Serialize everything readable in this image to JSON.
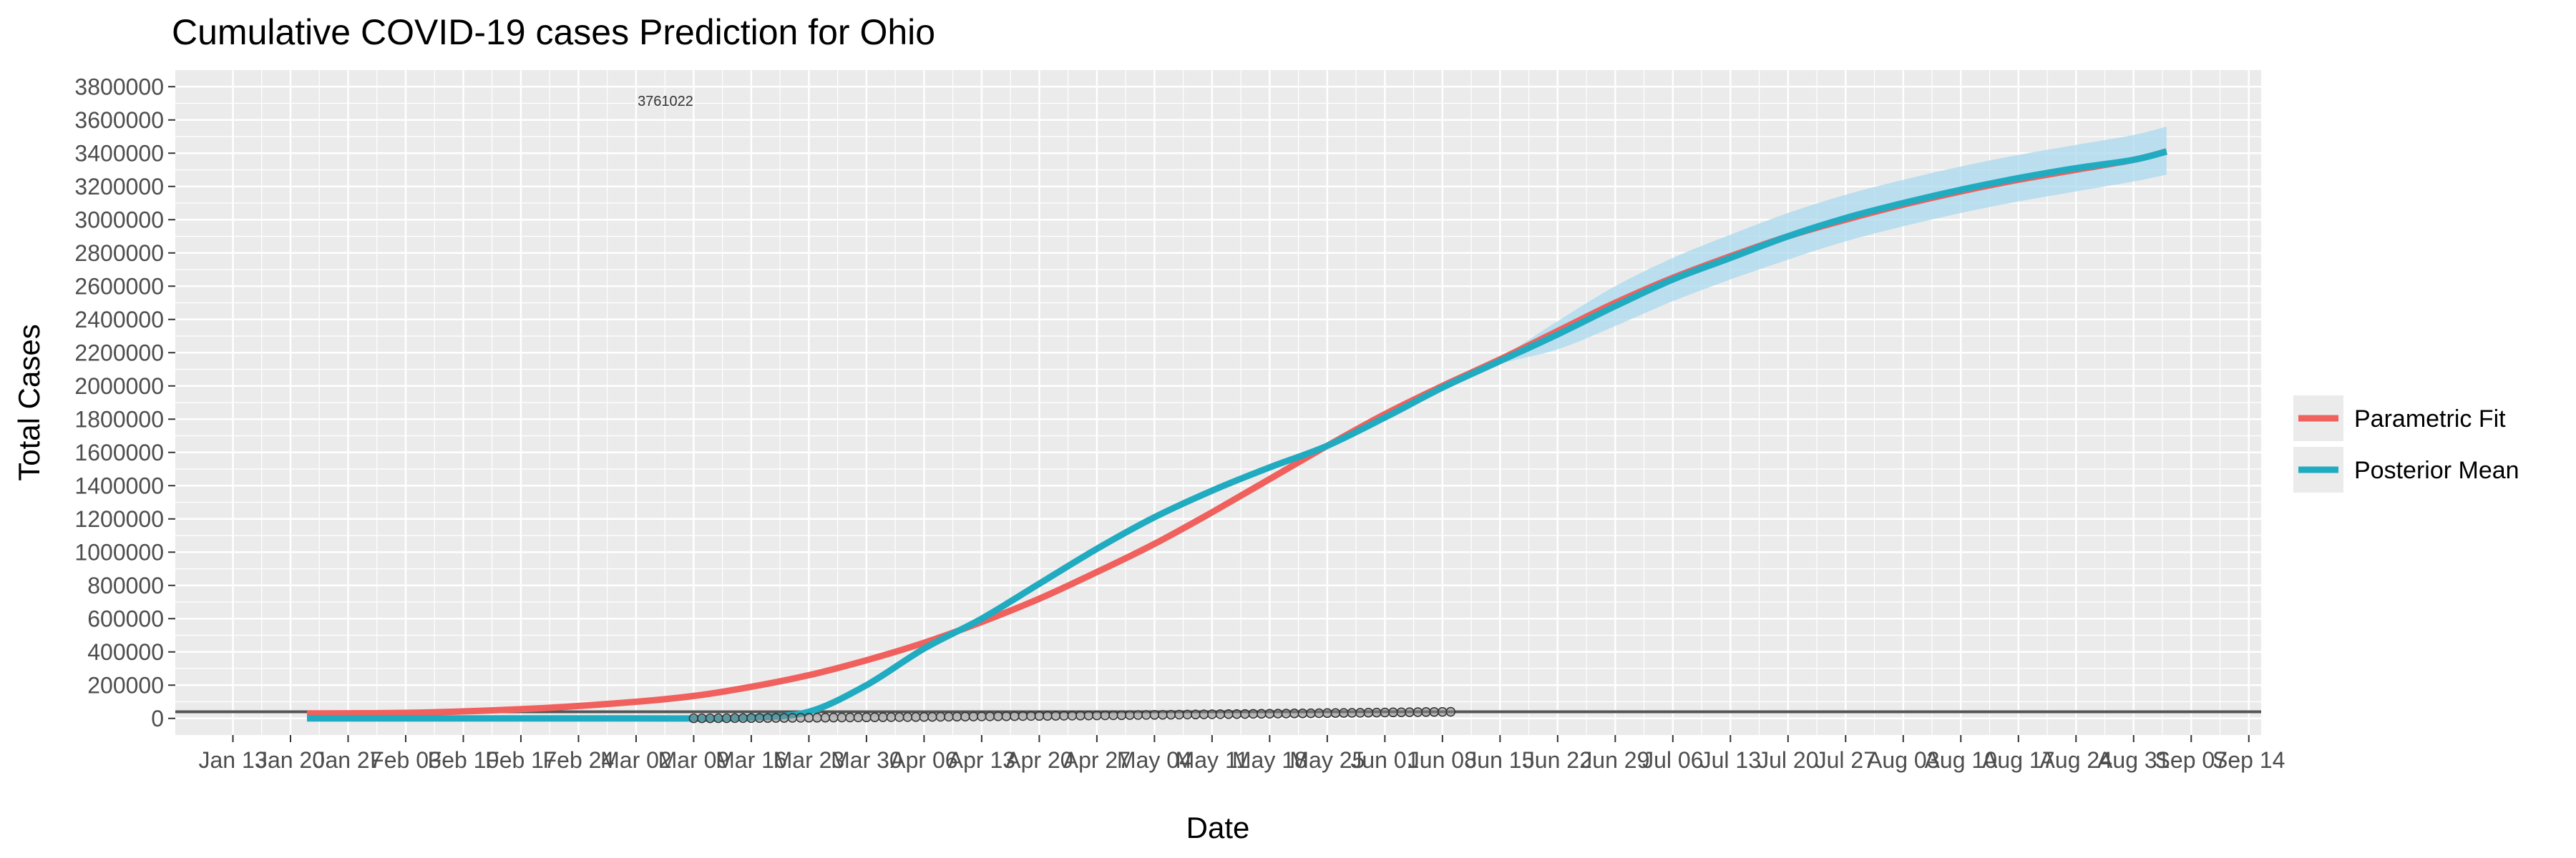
{
  "chart_data": {
    "type": "line",
    "title": "Cumulative COVID-19 cases Prediction for Ohio",
    "xlabel": "Date",
    "ylabel": "Total Cases",
    "ylim": [
      -100000,
      3900000
    ],
    "yticks": [
      0,
      200000,
      400000,
      600000,
      800000,
      1000000,
      1200000,
      1400000,
      1600000,
      1800000,
      2000000,
      2200000,
      2400000,
      2600000,
      2800000,
      3000000,
      3200000,
      3400000,
      3600000,
      3800000
    ],
    "xticks": [
      "Jan 13",
      "Jan 20",
      "Jan 27",
      "Feb 03",
      "Feb 10",
      "Feb 17",
      "Feb 24",
      "Mar 02",
      "Mar 09",
      "Mar 16",
      "Mar 23",
      "Mar 30",
      "Apr 06",
      "Apr 13",
      "Apr 20",
      "Apr 27",
      "May 04",
      "May 11",
      "May 18",
      "May 25",
      "Jun 01",
      "Jun 08",
      "Jun 15",
      "Jun 22",
      "Jun 29",
      "Jul 06",
      "Jul 13",
      "Jul 20",
      "Jul 27",
      "Aug 03",
      "Aug 10",
      "Aug 17",
      "Aug 24",
      "Aug 31",
      "Sep 07",
      "Sep 14"
    ],
    "annotation": "3761022",
    "hline": 40000,
    "legend": {
      "placement": "right",
      "entries": [
        "Parametric Fit",
        "Posterior Mean"
      ]
    },
    "colors": {
      "parametric": "#F0605D",
      "posterior": "#21ABC0",
      "band": "#A9D9EF",
      "observed": "#555555",
      "hline": "#555555",
      "panel": "#EBEBEB",
      "grid": "#FFFFFF"
    },
    "series": [
      {
        "name": "Parametric Fit",
        "x": [
          "Jan 22",
          "Feb 05",
          "Feb 19",
          "Mar 02",
          "Mar 09",
          "Mar 16",
          "Mar 23",
          "Mar 30",
          "Apr 06",
          "Apr 13",
          "Apr 20",
          "Apr 27",
          "May 04",
          "May 11",
          "May 18",
          "May 25",
          "Jun 01",
          "Jun 08",
          "Jun 15",
          "Jun 22",
          "Jun 29",
          "Jul 06",
          "Jul 13",
          "Jul 20",
          "Jul 27",
          "Aug 03",
          "Aug 10",
          "Aug 17",
          "Aug 24",
          "Aug 31",
          "Sep 04"
        ],
        "values": [
          30000,
          35000,
          60000,
          100000,
          135000,
          190000,
          260000,
          350000,
          455000,
          580000,
          720000,
          880000,
          1050000,
          1240000,
          1440000,
          1640000,
          1830000,
          2000000,
          2160000,
          2330000,
          2500000,
          2650000,
          2780000,
          2900000,
          3000000,
          3090000,
          3170000,
          3240000,
          3300000,
          3360000,
          3410000
        ]
      },
      {
        "name": "Posterior Mean",
        "x": [
          "Jan 22",
          "Feb 05",
          "Feb 19",
          "Mar 02",
          "Mar 09",
          "Mar 16",
          "Mar 23",
          "Mar 30",
          "Apr 06",
          "Apr 13",
          "Apr 20",
          "Apr 27",
          "May 04",
          "May 11",
          "May 18",
          "May 25",
          "Jun 01",
          "Jun 08",
          "Jun 15",
          "Jun 22",
          "Jun 29",
          "Jul 06",
          "Jul 13",
          "Jul 20",
          "Jul 27",
          "Aug 03",
          "Aug 10",
          "Aug 17",
          "Aug 24",
          "Aug 31",
          "Sep 04"
        ],
        "values": [
          0,
          0,
          0,
          0,
          0,
          5000,
          40000,
          200000,
          420000,
          600000,
          810000,
          1020000,
          1210000,
          1370000,
          1510000,
          1640000,
          1810000,
          1990000,
          2150000,
          2310000,
          2480000,
          2640000,
          2770000,
          2900000,
          3010000,
          3100000,
          3180000,
          3250000,
          3310000,
          3360000,
          3410000
        ],
        "lower": [
          0,
          0,
          0,
          0,
          0,
          5000,
          40000,
          200000,
          420000,
          600000,
          810000,
          1020000,
          1210000,
          1370000,
          1510000,
          1640000,
          1810000,
          1990000,
          2130000,
          2220000,
          2360000,
          2510000,
          2640000,
          2760000,
          2870000,
          2960000,
          3040000,
          3110000,
          3170000,
          3230000,
          3270000
        ],
        "upper": [
          0,
          0,
          0,
          0,
          0,
          5000,
          40000,
          200000,
          420000,
          600000,
          810000,
          1020000,
          1210000,
          1370000,
          1510000,
          1640000,
          1810000,
          1990000,
          2170000,
          2390000,
          2600000,
          2770000,
          2910000,
          3040000,
          3150000,
          3240000,
          3320000,
          3390000,
          3450000,
          3510000,
          3560000
        ]
      }
    ],
    "observed": {
      "x_start": "Mar 09",
      "x_end": "Jun 09",
      "y_start": 500,
      "y_end": 40000
    }
  }
}
